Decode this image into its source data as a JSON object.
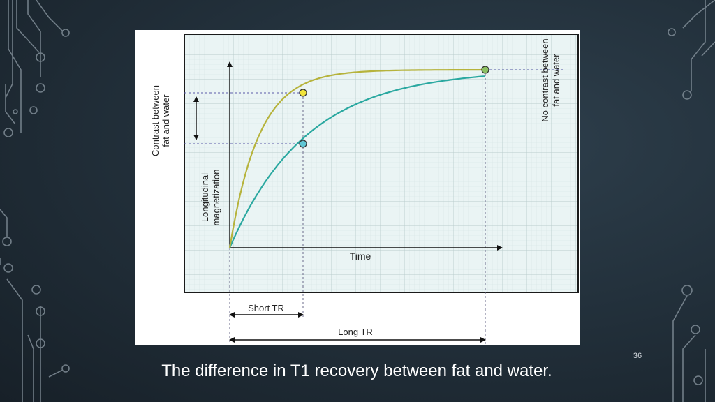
{
  "slide": {
    "caption": "The difference in T1 recovery between fat and water.",
    "slide_number": "36"
  },
  "figure": {
    "y_axis_label_line1": "Longitudinal",
    "y_axis_label_line2": "magnetization",
    "x_axis_label": "Time",
    "left_annotation_line1": "Contrast between",
    "left_annotation_line2": "fat and water",
    "right_annotation_line1": "No contrast between",
    "right_annotation_line2": "fat and water",
    "short_tr_label": "Short TR",
    "long_tr_label": "Long TR"
  },
  "colors": {
    "fat_curve": "#b6b33c",
    "water_curve": "#2aa8a0",
    "fat_marker": "#f0e33a",
    "water_marker": "#5fc6d4",
    "equilibrium_marker": "#8cc063",
    "grid_background": "#e9f4f4",
    "grid_line": "#cfdede",
    "guide_line": "#5a5aa8"
  },
  "icons": {
    "background": "circuit-trace-decoration",
    "contrast_marker": "double-headed-arrow-icon"
  }
}
